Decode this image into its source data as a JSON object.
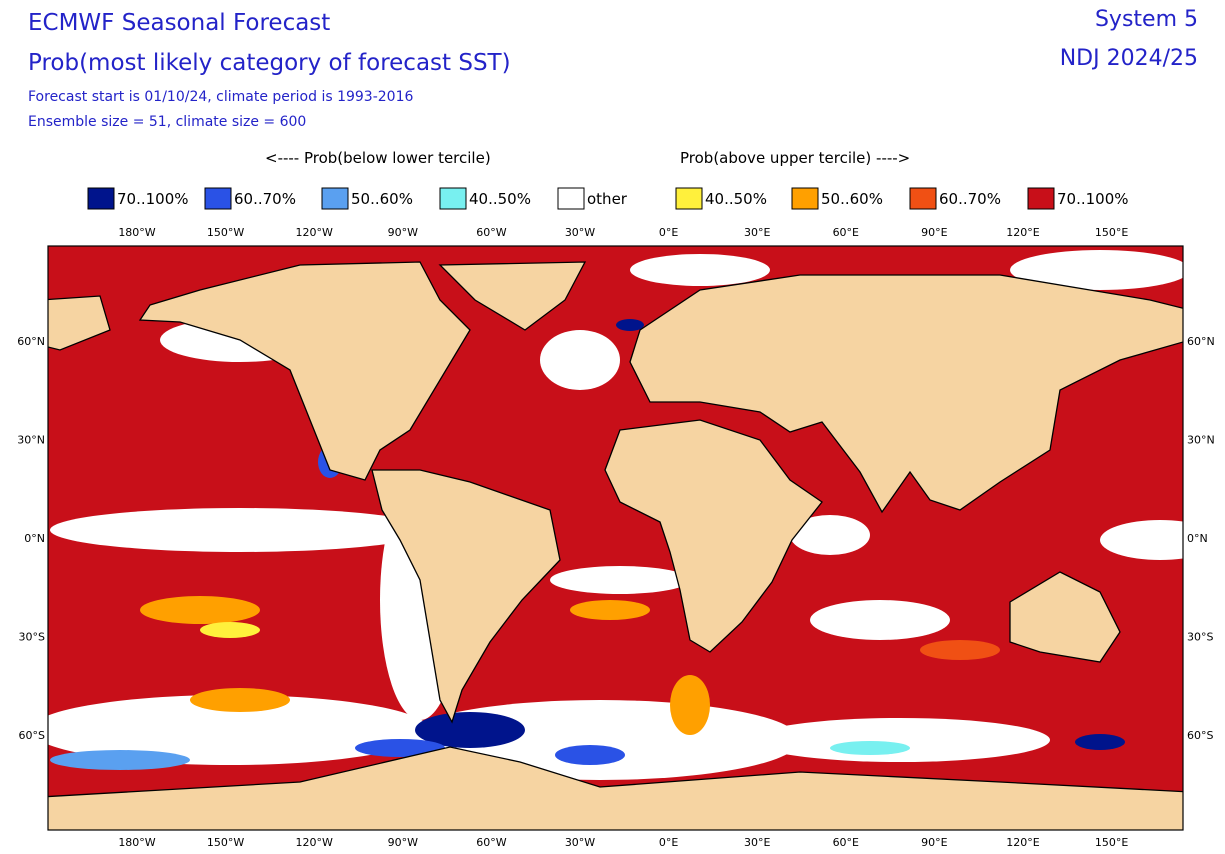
{
  "header": {
    "title": "ECMWF Seasonal Forecast",
    "subtitle": "Prob(most likely category of forecast SST)",
    "notes": [
      "Forecast start is 01/10/24, climate period is 1993-2016",
      "Ensemble size = 51, climate size = 600"
    ],
    "system": "System 5",
    "period": "NDJ 2024/25"
  },
  "legend": {
    "below_title": "<---- Prob(below lower tercile)",
    "above_title": "Prob(above upper tercile) ---->",
    "items": [
      {
        "label": "70..100%",
        "color": "#00148c"
      },
      {
        "label": "60..70%",
        "color": "#2a52e6"
      },
      {
        "label": "50..60%",
        "color": "#5aa0f0"
      },
      {
        "label": "40..50%",
        "color": "#78f0f0"
      },
      {
        "label": "other",
        "color": "#ffffff"
      },
      {
        "label": "40..50%",
        "color": "#fff03c"
      },
      {
        "label": "50..60%",
        "color": "#ffa000"
      },
      {
        "label": "60..70%",
        "color": "#f05014"
      },
      {
        "label": "70..100%",
        "color": "#c80f19"
      }
    ]
  },
  "map": {
    "lon_labels": [
      "180°W",
      "150°W",
      "120°W",
      "90°W",
      "60°W",
      "30°W",
      "0°E",
      "30°E",
      "60°E",
      "90°E",
      "120°E",
      "150°E"
    ],
    "lat_labels": [
      "60°N",
      "30°N",
      "0°N",
      "30°S",
      "60°S"
    ]
  }
}
